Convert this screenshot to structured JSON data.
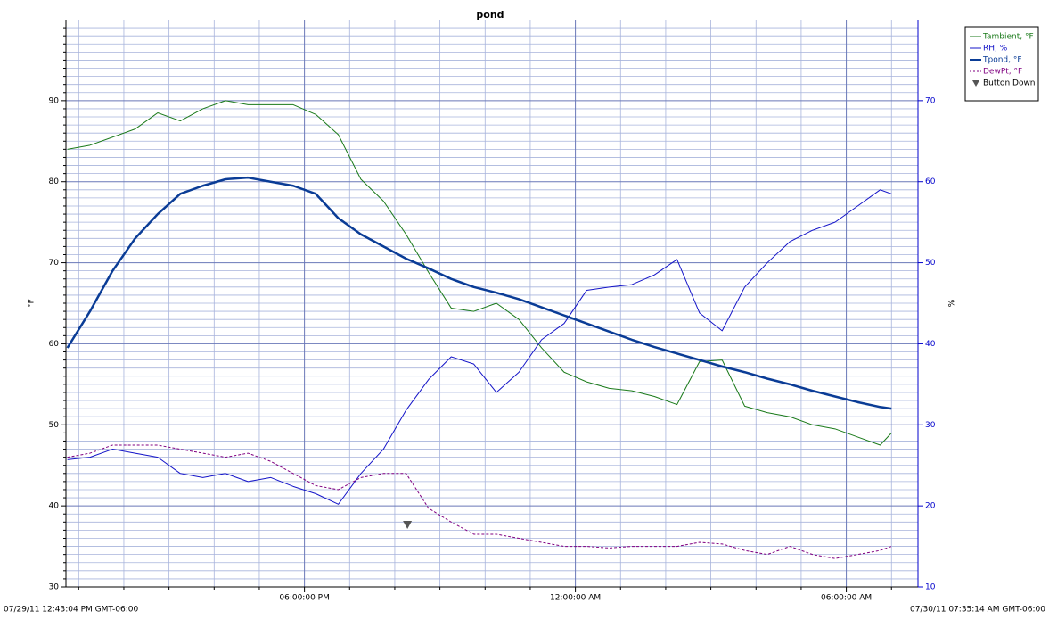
{
  "chart_data": {
    "type": "line",
    "title": "pond",
    "ylabel": "°F",
    "y2label": "%",
    "start_label": "07/29/11 12:43:04 PM GMT-06:00",
    "end_label": "07/30/11 07:35:14 AM GMT-06:00",
    "xlim": [
      12.7178,
      31.5872
    ],
    "xticks": [
      {
        "value": 18,
        "label": "06:00:00 PM"
      },
      {
        "value": 24,
        "label": "12:00:00 AM"
      },
      {
        "value": 30,
        "label": "06:00:00 AM"
      }
    ],
    "xminorticks": [
      13,
      14,
      15,
      16,
      17,
      19,
      20,
      21,
      22,
      23,
      25,
      26,
      27,
      28,
      29,
      31
    ],
    "ylim": [
      30,
      100
    ],
    "yticks": [
      30,
      40,
      50,
      60,
      70,
      80,
      90
    ],
    "yminorticks": [
      31,
      32,
      33,
      34,
      35,
      36,
      37,
      38,
      39,
      41,
      42,
      43,
      44,
      45,
      46,
      47,
      48,
      49,
      51,
      52,
      53,
      54,
      55,
      56,
      57,
      58,
      59,
      61,
      62,
      63,
      64,
      65,
      66,
      67,
      68,
      69,
      71,
      72,
      73,
      74,
      75,
      76,
      77,
      78,
      79,
      81,
      82,
      83,
      84,
      85,
      86,
      87,
      88,
      89,
      91,
      92,
      93,
      94,
      95,
      96,
      97,
      98,
      99
    ],
    "y2lim": [
      10,
      80
    ],
    "y2ticks": [
      10,
      20,
      30,
      40,
      50,
      60,
      70
    ],
    "grid": true,
    "legend": "top-right",
    "x": [
      12.75,
      13.25,
      13.75,
      14.25,
      14.75,
      15.25,
      15.75,
      16.25,
      16.75,
      17.25,
      17.75,
      18.25,
      18.75,
      19.25,
      19.75,
      20.25,
      20.75,
      21.25,
      21.75,
      22.25,
      22.75,
      23.25,
      23.75,
      24.25,
      24.75,
      25.25,
      25.75,
      26.25,
      26.75,
      27.25,
      27.75,
      28.25,
      28.75,
      29.25,
      29.75,
      30.25,
      30.75,
      31.0
    ],
    "series": [
      {
        "name": "Tambient, °F",
        "color": "#1a7a1a",
        "style": "solid",
        "width": 1,
        "values": [
          84,
          84.5,
          85.5,
          86.5,
          88.5,
          87.5,
          89,
          90,
          89.5,
          89.5,
          89.5,
          88.3,
          85.8,
          80.3,
          77.6,
          73.5,
          68.8,
          64.4,
          64,
          65,
          63,
          59.5,
          56.5,
          55.3,
          54.5,
          54.2,
          53.5,
          52.5,
          57.8,
          58,
          52.3,
          51.5,
          51,
          50,
          49.5,
          48.5,
          47.5,
          49
        ]
      },
      {
        "name": "RH, %",
        "color": "#1414c8",
        "style": "solid",
        "width": 1,
        "axis": "y2",
        "values": [
          25.7,
          26,
          27,
          26.5,
          26,
          24,
          23.5,
          24,
          23,
          23.5,
          22.4,
          21.5,
          20.2,
          24,
          27,
          31.8,
          35.6,
          38.4,
          37.5,
          34,
          36.5,
          40.5,
          42.5,
          46.6,
          47,
          47.3,
          48.5,
          50.4,
          43.8,
          41.6,
          47,
          50,
          52.6,
          54,
          55,
          57,
          59,
          58.5
        ]
      },
      {
        "name": "Tpond, °F",
        "color": "#0a3c96",
        "style": "solid",
        "width": 2.5,
        "values": [
          59.5,
          64,
          69,
          73,
          76,
          78.5,
          79.5,
          80.3,
          80.5,
          80,
          79.5,
          78.5,
          75.5,
          73.5,
          72,
          70.5,
          69.3,
          68,
          67,
          66.3,
          65.5,
          64.5,
          63.5,
          62.5,
          61.5,
          60.5,
          59.6,
          58.8,
          58,
          57.2,
          56.5,
          55.7,
          55,
          54.2,
          53.5,
          52.8,
          52.2,
          52
        ]
      },
      {
        "name": "DewPt, °F",
        "color": "#800080",
        "style": "dashed",
        "width": 1,
        "values": [
          46,
          46.5,
          47.5,
          47.5,
          47.5,
          47,
          46.5,
          46,
          46.5,
          45.5,
          44,
          42.5,
          42,
          43.5,
          44,
          44,
          39.7,
          38,
          36.5,
          36.5,
          36,
          35.5,
          35,
          35,
          34.8,
          35,
          35,
          35,
          35.5,
          35.3,
          34.5,
          34,
          35,
          34,
          33.5,
          34,
          34.5,
          35
        ]
      },
      {
        "name": "Button Down",
        "color": "#555555",
        "style": "marker",
        "x": [
          20.28
        ],
        "values": [
          37.7
        ]
      }
    ]
  }
}
